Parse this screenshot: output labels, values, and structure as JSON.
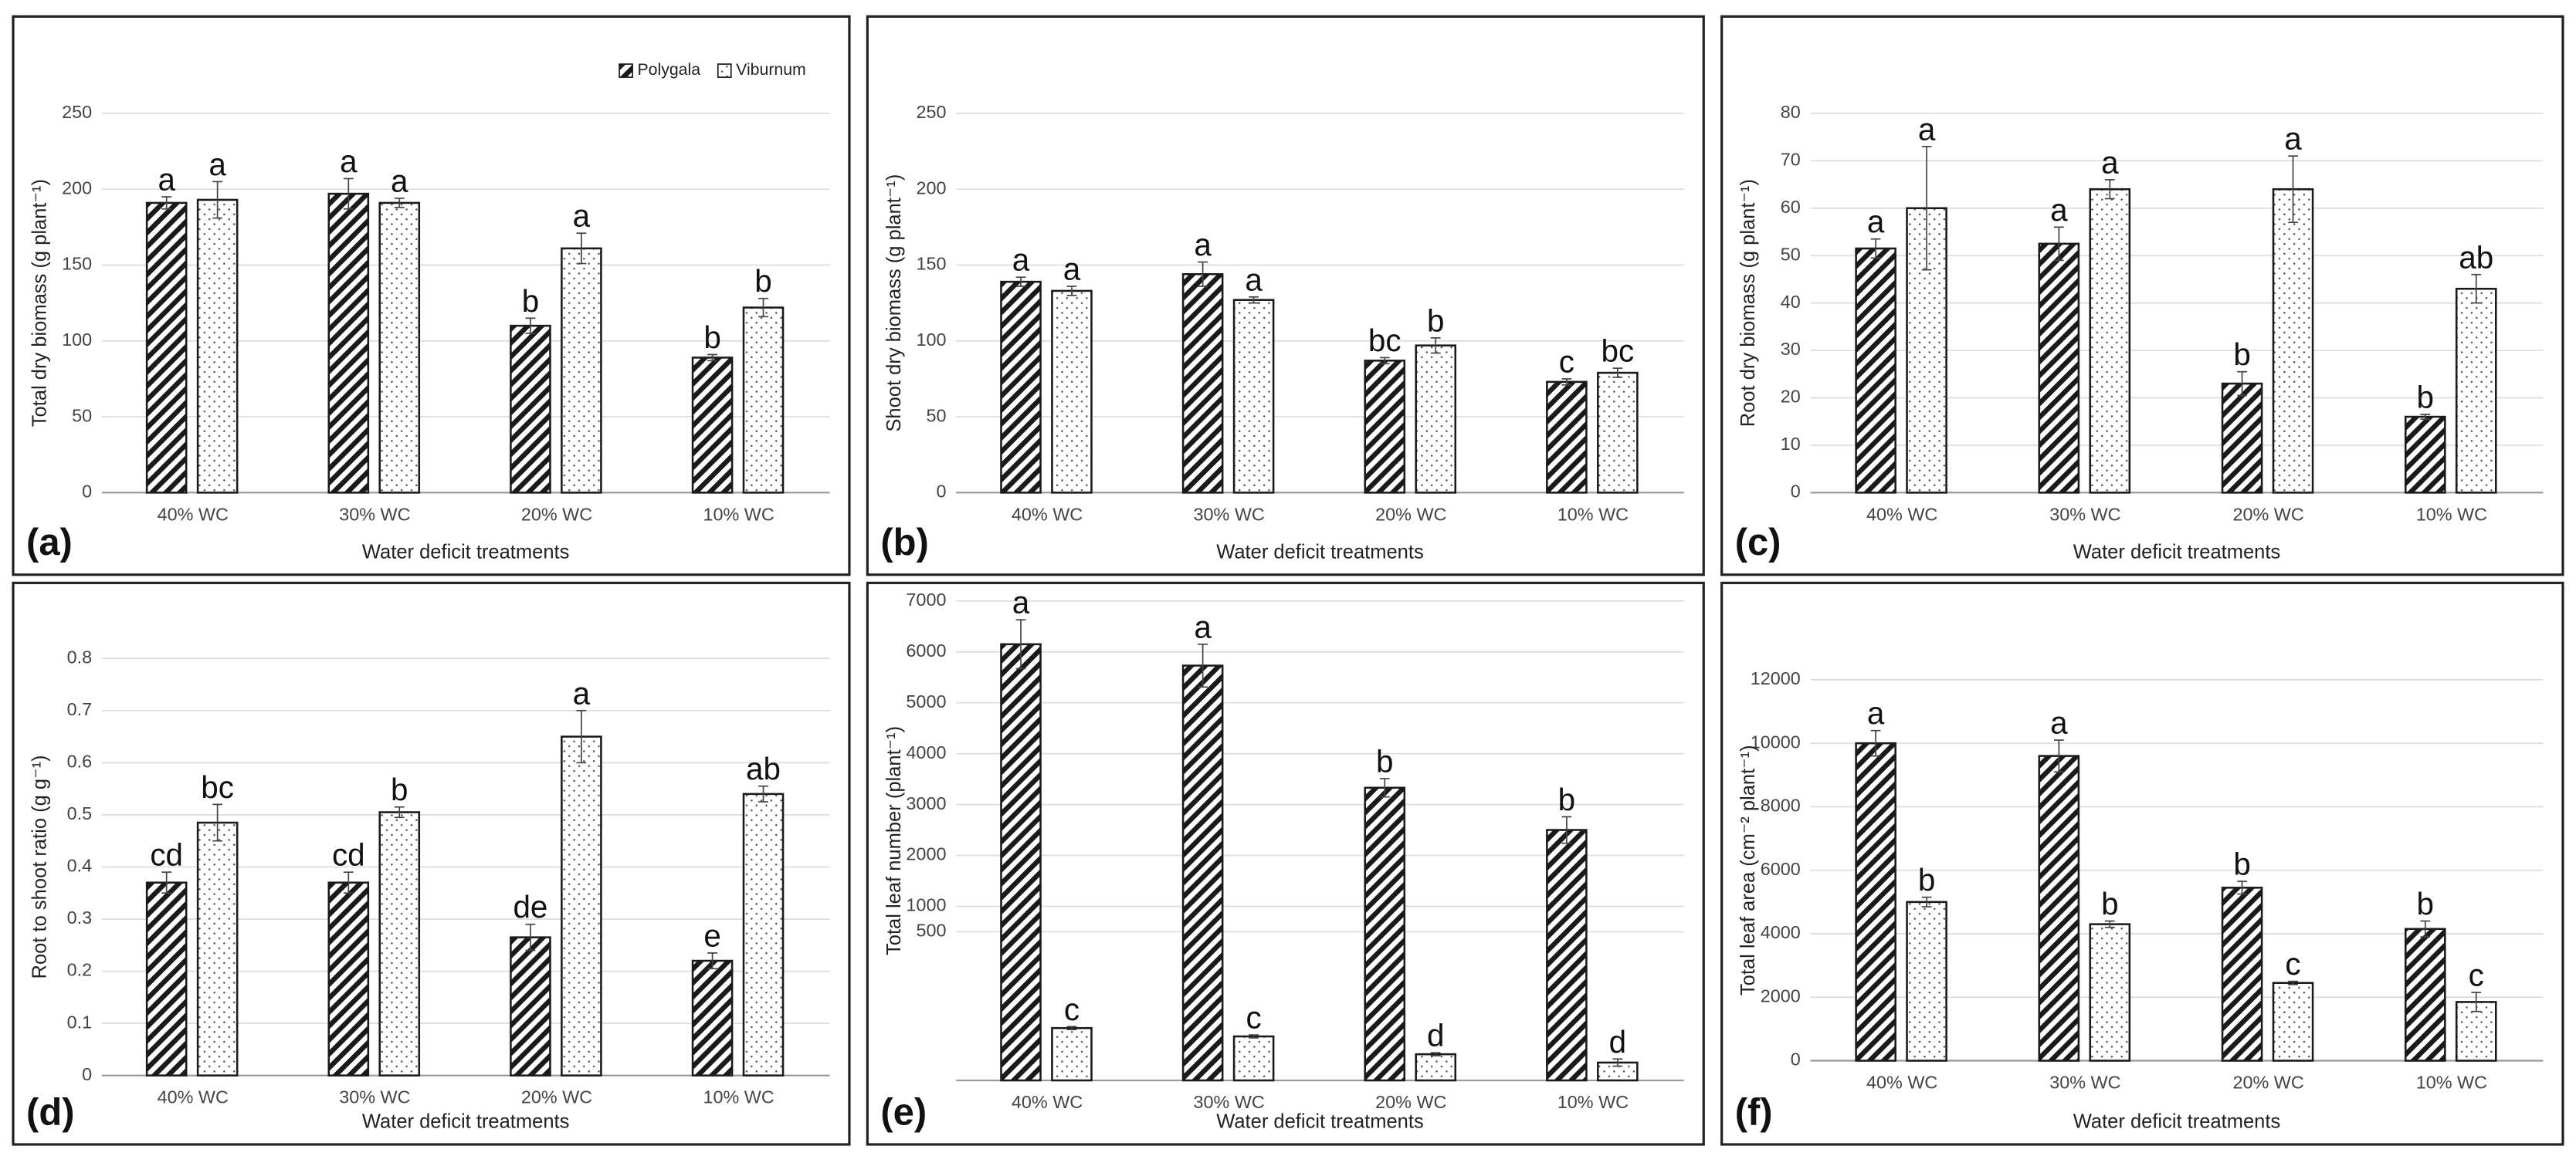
{
  "chart_data": [
    {
      "type": "bar",
      "panel_label": "(a)",
      "ylabel": "Total dry biomass (g plant⁻¹)",
      "xlabel": "Water deficit treatments",
      "categories": [
        "40% WC",
        "30% WC",
        "20% WC",
        "10% WC"
      ],
      "legend": "top-right",
      "grid": true,
      "ylim": [
        0,
        250
      ],
      "yticks": [
        0,
        50,
        100,
        150,
        200,
        250
      ],
      "series": [
        {
          "name": "Polygala",
          "color": "#1a1a1a",
          "pattern": "hatch",
          "values": [
            191,
            197,
            110,
            89
          ],
          "errors": [
            4,
            10,
            5,
            2
          ],
          "letters": [
            "a",
            "a",
            "b",
            "b"
          ]
        },
        {
          "name": "Viburnum",
          "color": "#1a1a1a",
          "pattern": "dots",
          "values": [
            193,
            191,
            161,
            122
          ],
          "errors": [
            12,
            3,
            10,
            6
          ],
          "letters": [
            "a",
            "a",
            "a",
            "b"
          ]
        }
      ]
    },
    {
      "type": "bar",
      "panel_label": "(b)",
      "ylabel": "Shoot dry biomass (g plant⁻¹)",
      "xlabel": "Water deficit treatments",
      "categories": [
        "40% WC",
        "30% WC",
        "20% WC",
        "10% WC"
      ],
      "grid": true,
      "ylim": [
        0,
        250
      ],
      "yticks": [
        0,
        50,
        100,
        150,
        200,
        250
      ],
      "series": [
        {
          "color": "#1a1a1a",
          "pattern": "hatch",
          "values": [
            139,
            144,
            87,
            73
          ],
          "errors": [
            3,
            8,
            2,
            2
          ],
          "letters": [
            "a",
            "a",
            "bc",
            "c"
          ]
        },
        {
          "color": "#1a1a1a",
          "pattern": "dots",
          "values": [
            133,
            127,
            97,
            79
          ],
          "errors": [
            3,
            2,
            5,
            3
          ],
          "letters": [
            "a",
            "a",
            "b",
            "bc"
          ]
        }
      ]
    },
    {
      "type": "bar",
      "panel_label": "(c)",
      "ylabel": "Root dry biomass (g plant⁻¹)",
      "xlabel": "Water deficit treatments",
      "categories": [
        "40% WC",
        "30% WC",
        "20% WC",
        "10% WC"
      ],
      "grid": true,
      "ylim": [
        0,
        80
      ],
      "yticks": [
        0,
        10,
        20,
        30,
        40,
        50,
        60,
        70,
        80
      ],
      "series": [
        {
          "color": "#1a1a1a",
          "pattern": "hatch",
          "values": [
            51.5,
            52.5,
            23,
            16
          ],
          "errors": [
            2,
            3.5,
            2.5,
            0.5
          ],
          "letters": [
            "a",
            "a",
            "b",
            "b"
          ]
        },
        {
          "color": "#1a1a1a",
          "pattern": "dots",
          "values": [
            60,
            64,
            64,
            43
          ],
          "errors": [
            13,
            2,
            7,
            3
          ],
          "letters": [
            "a",
            "a",
            "a",
            "ab"
          ]
        }
      ]
    },
    {
      "type": "bar",
      "panel_label": "(d)",
      "ylabel": "Root to shoot ratio (g g⁻¹)",
      "xlabel": "Water deficit treatments",
      "categories": [
        "40% WC",
        "30% WC",
        "20% WC",
        "10% WC"
      ],
      "grid": true,
      "ylim": [
        0,
        0.8
      ],
      "yticks": [
        0,
        0.1,
        0.2,
        0.3,
        0.4,
        0.5,
        0.6,
        0.7,
        0.8
      ],
      "series": [
        {
          "color": "#1a1a1a",
          "pattern": "hatch",
          "values": [
            0.37,
            0.37,
            0.265,
            0.22
          ],
          "errors": [
            0.02,
            0.02,
            0.025,
            0.015
          ],
          "letters": [
            "cd",
            "cd",
            "de",
            "e"
          ]
        },
        {
          "color": "#1a1a1a",
          "pattern": "dots",
          "values": [
            0.485,
            0.505,
            0.65,
            0.54
          ],
          "errors": [
            0.035,
            0.01,
            0.05,
            0.015
          ],
          "letters": [
            "bc",
            "b",
            "a",
            "ab"
          ]
        }
      ]
    },
    {
      "type": "bar",
      "panel_label": "(e)",
      "ylabel": "Total leaf number (plant⁻¹)",
      "xlabel": "Water deficit treatments",
      "categories": [
        "40% WC",
        "30% WC",
        "20% WC",
        "10% WC"
      ],
      "grid": true,
      "ylim": [
        0,
        7000
      ],
      "y_break": 500,
      "yticks": [
        500,
        1000,
        2000,
        3000,
        4000,
        5000,
        6000,
        7000
      ],
      "series": [
        {
          "color": "#1a1a1a",
          "pattern": "hatch",
          "values": [
            6150,
            5730,
            3330,
            2500
          ],
          "errors": [
            480,
            420,
            180,
            260
          ],
          "letters": [
            "a",
            "a",
            "b",
            "b"
          ]
        },
        {
          "color": "#1a1a1a",
          "pattern": "dots",
          "values": [
            176,
            148,
            88,
            60
          ],
          "errors": [
            5,
            5,
            5,
            12
          ],
          "letters": [
            "c",
            "c",
            "d",
            "d"
          ]
        }
      ]
    },
    {
      "type": "bar",
      "panel_label": "(f)",
      "ylabel": "Total leaf area (cm⁻² plant⁻¹)",
      "xlabel": "Water deficit treatments",
      "categories": [
        "40% WC",
        "30% WC",
        "20% WC",
        "10% WC"
      ],
      "grid": true,
      "ylim": [
        0,
        12000
      ],
      "yticks": [
        0,
        2000,
        4000,
        6000,
        8000,
        10000,
        12000
      ],
      "series": [
        {
          "color": "#1a1a1a",
          "pattern": "hatch",
          "values": [
            10000,
            9600,
            5450,
            4150
          ],
          "errors": [
            400,
            500,
            200,
            250
          ],
          "letters": [
            "a",
            "a",
            "b",
            "b"
          ]
        },
        {
          "color": "#1a1a1a",
          "pattern": "dots",
          "values": [
            5000,
            4300,
            2450,
            1850
          ],
          "errors": [
            150,
            100,
            50,
            300
          ],
          "letters": [
            "b",
            "b",
            "c",
            "c"
          ]
        }
      ]
    }
  ]
}
